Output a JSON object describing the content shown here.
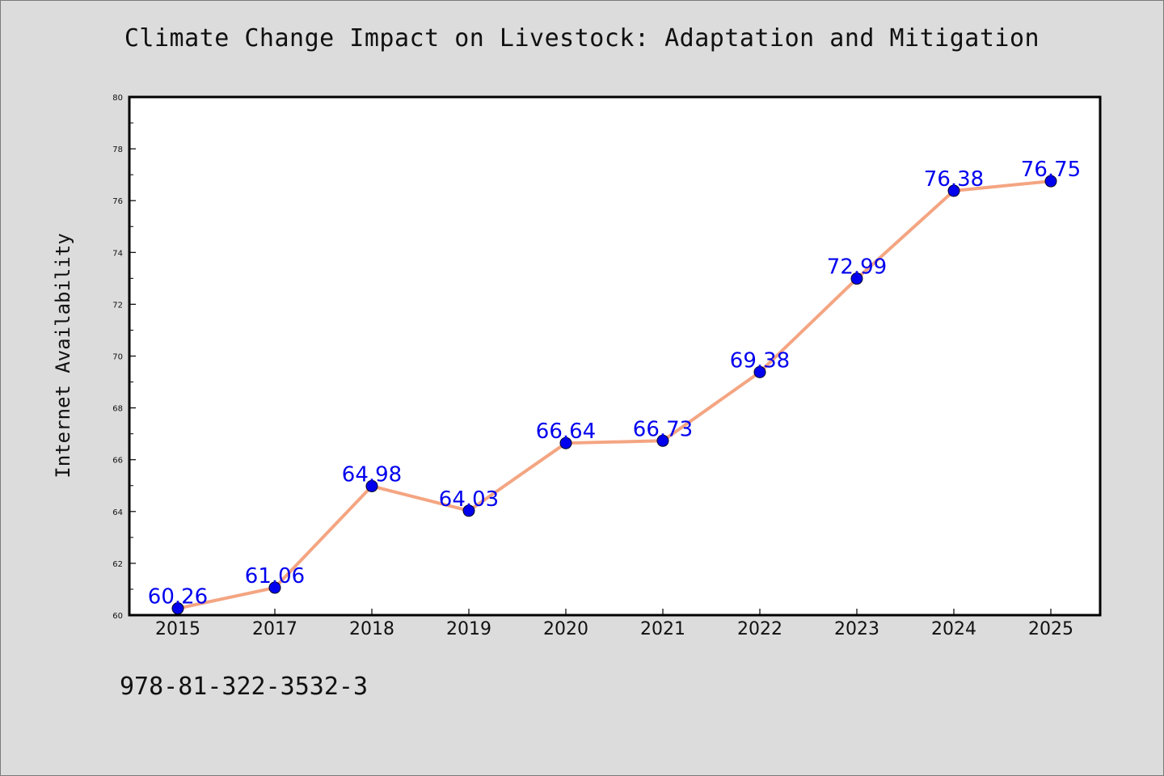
{
  "chart_data": {
    "type": "line",
    "title": "Climate Change Impact on Livestock: Adaptation and Mitigation",
    "xlabel": "",
    "ylabel": "Internet Availability",
    "categories": [
      "2015",
      "2017",
      "2018",
      "2019",
      "2020",
      "2021",
      "2022",
      "2023",
      "2024",
      "2025"
    ],
    "series": [
      {
        "values": [
          60.26,
          61.06,
          64.98,
          64.03,
          66.64,
          66.73,
          69.38,
          72.99,
          76.38,
          76.75
        ],
        "line_color": "#f4a582",
        "marker_color": "#0000ee"
      }
    ],
    "data_labels": [
      "60.26",
      "61.06",
      "64.98",
      "64.03",
      "66.64",
      "66.73",
      "69.38",
      "72.99",
      "76.38",
      "76.75"
    ],
    "label_color": "#0000ee",
    "ylim": [
      60,
      80
    ],
    "y_ticks": [
      "60",
      "62",
      "64",
      "66",
      "68",
      "70",
      "72",
      "74",
      "76",
      "78",
      "80"
    ],
    "grid": false,
    "legend": "none"
  },
  "footer": {
    "isbn": "978-81-322-3532-3"
  }
}
